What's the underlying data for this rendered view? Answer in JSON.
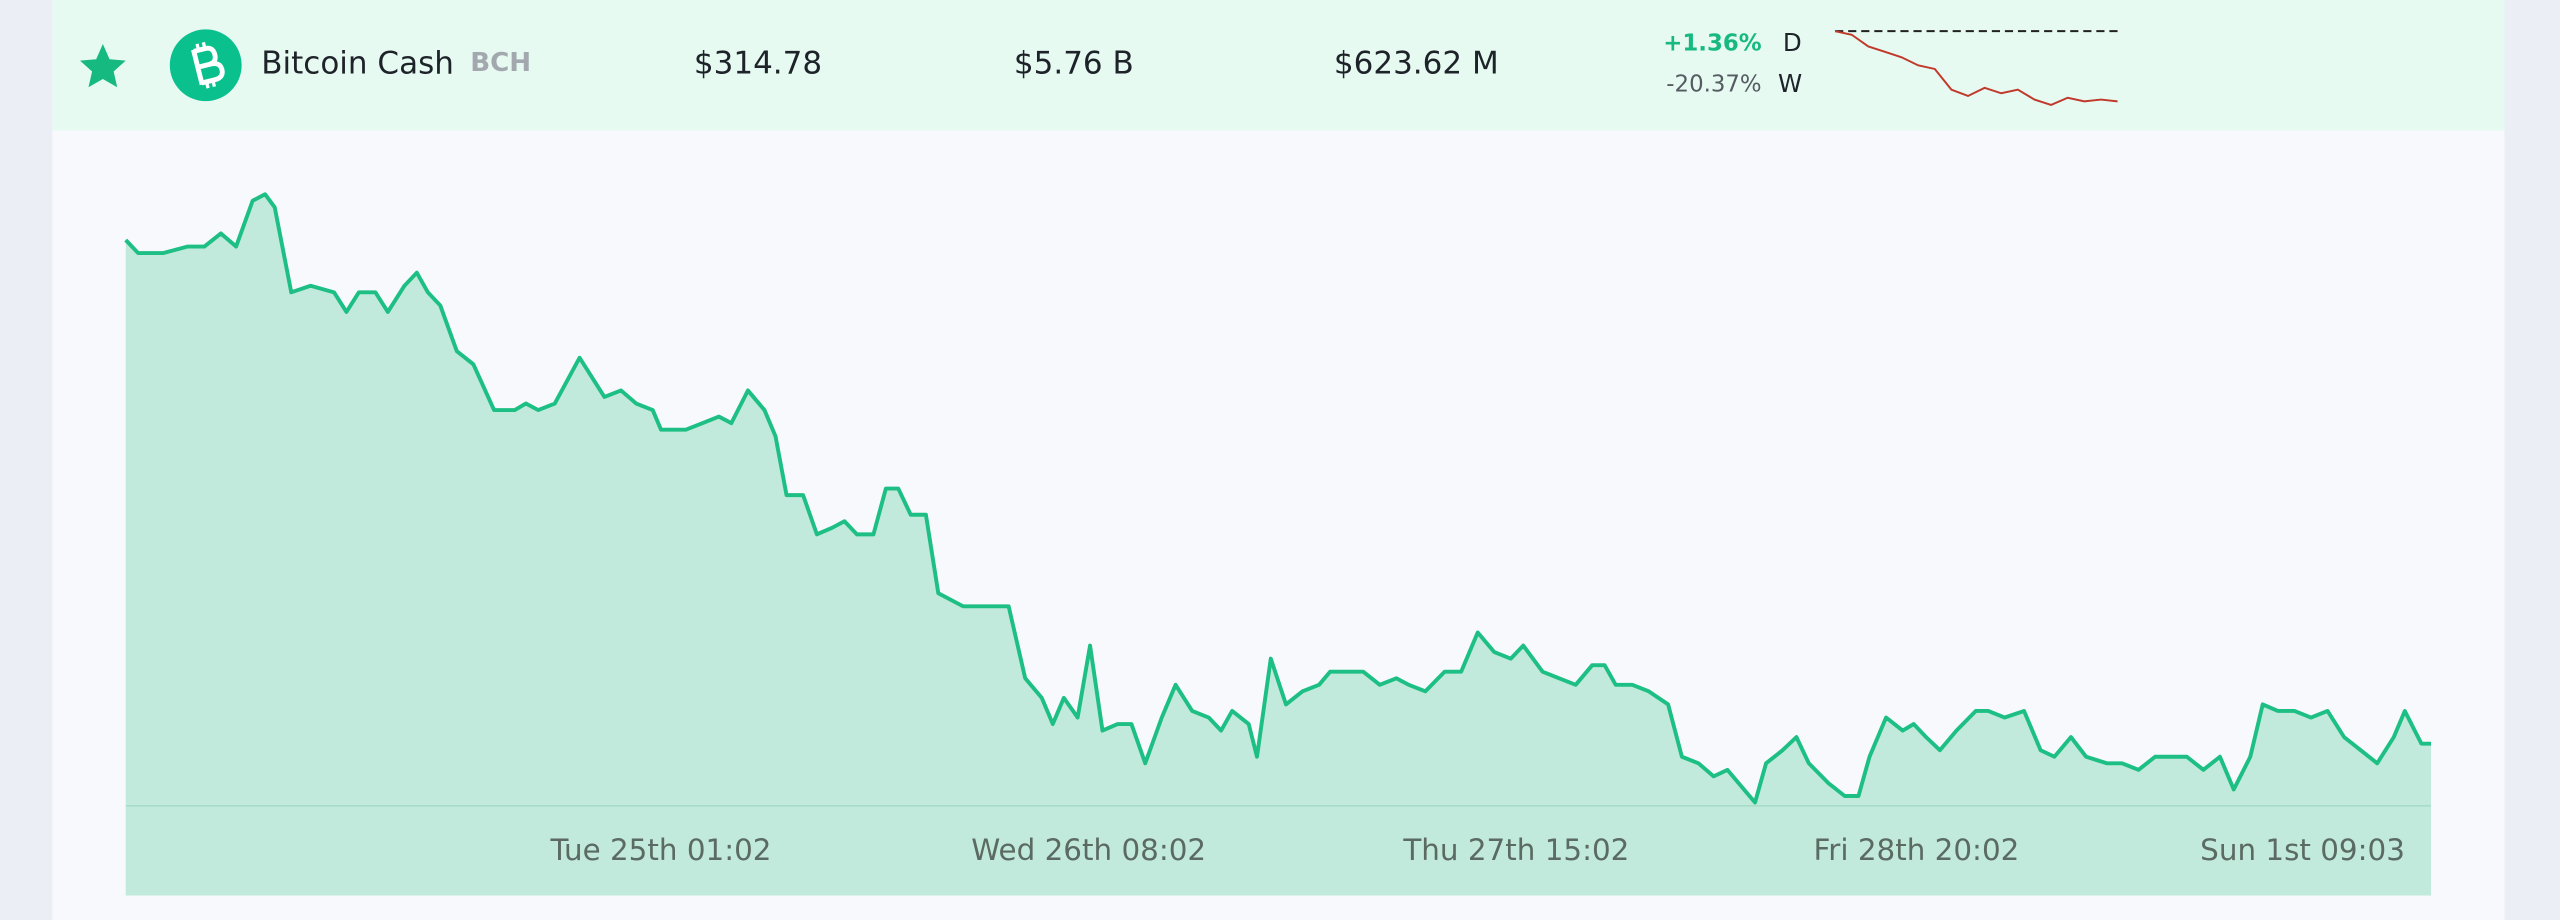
{
  "row": {
    "name": "Bitcoin Cash",
    "symbol": "BCH",
    "price": "$314.78",
    "market_cap": "$5.76 B",
    "volume": "$623.62 M",
    "change_day": "+1.36%",
    "change_day_label": "D",
    "change_week": "-20.37%",
    "change_week_label": "W",
    "sparkline": {
      "values": [
        395,
        391,
        378,
        372,
        366,
        357,
        353,
        330,
        323,
        332,
        326,
        330,
        319,
        313,
        321,
        317,
        319,
        317
      ],
      "reference": 395,
      "ylim": [
        310,
        397
      ],
      "color": "#c0392b"
    }
  },
  "chart_data": {
    "type": "area",
    "color": "#1dbf84",
    "fill": "#c2eadc",
    "x": [
      0,
      0.9,
      2.7,
      4.5,
      5.7,
      6.9,
      8.0,
      9.2,
      10.1,
      10.8,
      12.0,
      13.4,
      15.1,
      16.0,
      16.9,
      18.1,
      19.0,
      20.2,
      21.1,
      21.9,
      22.8,
      24.0,
      25.2,
      26.7,
      28.2,
      29.0,
      29.9,
      31.1,
      32.9,
      34.7,
      35.9,
      37.0,
      38.2,
      38.8,
      40.6,
      41.8,
      43.0,
      43.9,
      45.1,
      46.3,
      47.1,
      47.9,
      49.1,
      50.1,
      51.2,
      52.1,
      53.0,
      54.2,
      55.1,
      56.0,
      56.9,
      58.0,
      58.9,
      60.7,
      63.1,
      64.0,
      65.2,
      66.4,
      67.2,
      68.0,
      69.0,
      69.9,
      70.8,
      71.9,
      72.9,
      73.9,
      75.1,
      76.1,
      77.3,
      78.5,
      79.4,
      80.2,
      81.4,
      82.0,
      83.0,
      84.1,
      85.3,
      86.5,
      87.3,
      88.5,
      89.7,
      90.9,
      92.1,
      93.0,
      94.2,
      95.6,
      96.8,
      98.0,
      99.2,
      100.4,
      101.3,
      102.7,
      103.9,
      105.1,
      106.3,
      107.2,
      108.0,
      109.2,
      110.4,
      111.8,
      112.8,
      114.0,
      115.1,
      116.1,
      117.3,
      118.1,
      118.9,
      120.1,
      121.1,
      122.0,
      123.4,
      124.6,
      125.6,
      126.4,
      127.6,
      128.8,
      129.6,
      130.5,
      131.5,
      132.7,
      134.1,
      135.0,
      136.2,
      137.6,
      138.8,
      139.8,
      141.0,
      142.1,
      143.6,
      144.7,
      145.9,
      147.1,
      148.5,
      149.4,
      150.6,
      151.8,
      152.8,
      154.0,
      154.9,
      156.0,
      157.2,
      158.4,
      159.6,
      160.8,
      162.0,
      163.2,
      164.4,
      165.2,
      166.4,
      167.1
    ],
    "values": [
      392,
      390,
      390,
      391,
      391,
      393,
      391,
      398,
      399,
      397,
      384,
      385,
      384,
      381,
      384,
      384,
      381,
      385,
      387,
      384,
      382,
      375,
      373,
      366,
      366,
      367,
      366,
      367,
      374,
      368,
      369,
      367,
      366,
      363,
      363,
      364,
      365,
      364,
      369,
      366,
      362,
      353,
      353,
      347,
      348,
      349,
      347,
      347,
      354,
      354,
      350,
      350,
      338,
      336,
      336,
      336,
      325,
      322,
      318,
      322,
      319,
      330,
      317,
      318,
      318,
      312,
      319,
      324,
      320,
      319,
      317,
      320,
      318,
      313,
      328,
      321,
      323,
      324,
      326,
      326,
      326,
      324,
      325,
      324,
      323,
      326,
      326,
      332,
      329,
      328,
      330,
      326,
      325,
      324,
      327,
      327,
      324,
      324,
      323,
      321,
      313,
      312,
      310,
      311,
      308,
      306,
      312,
      314,
      316,
      312,
      309,
      307,
      307,
      313,
      319,
      317,
      318,
      316,
      314,
      317,
      320,
      320,
      319,
      320,
      314,
      313,
      316,
      313,
      312,
      312,
      311,
      313,
      313,
      313,
      311,
      313,
      308,
      313,
      321,
      320,
      320,
      319,
      320,
      316,
      314,
      312,
      316,
      320,
      315,
      315
    ],
    "xlim": [
      0,
      167.1
    ],
    "ylim": [
      305.5,
      405
    ],
    "xticks": [
      {
        "value": 38.8,
        "label": "Tue 25th 01:02"
      },
      {
        "value": 69.8,
        "label": "Wed 26th 08:02"
      },
      {
        "value": 100.8,
        "label": "Thu 27th 15:02"
      },
      {
        "value": 129.8,
        "label": "Fri 28th 20:02"
      },
      {
        "value": 166.8,
        "label": "Sun 1st 09:03"
      }
    ]
  }
}
